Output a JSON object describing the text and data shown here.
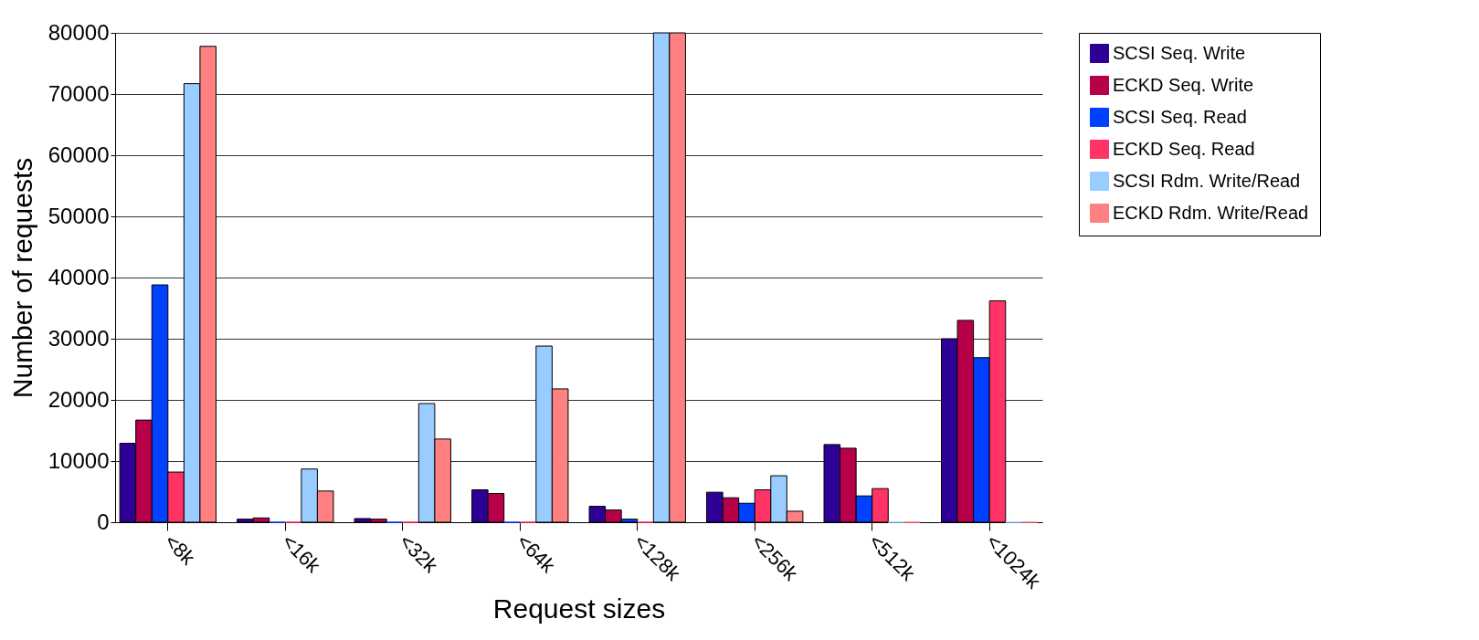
{
  "chart_data": {
    "type": "bar",
    "xlabel": "Request sizes",
    "ylabel": "Number of requests",
    "categories": [
      "<8k",
      "<16k",
      "<32k",
      "<64k",
      "<128k",
      "<256k",
      "<512k",
      "<1024k"
    ],
    "series": [
      {
        "name": "SCSI Seq. Write",
        "color": "#2e0096",
        "values": [
          12900,
          500,
          600,
          5300,
          2600,
          4900,
          12700,
          30000
        ]
      },
      {
        "name": "ECKD Seq. Write",
        "color": "#b8004a",
        "values": [
          16700,
          700,
          500,
          4700,
          2000,
          4000,
          12100,
          33000
        ]
      },
      {
        "name": "SCSI Seq. Read",
        "color": "#0040ff",
        "values": [
          38800,
          0,
          0,
          0,
          500,
          3100,
          4300,
          26900
        ]
      },
      {
        "name": "ECKD Seq. Read",
        "color": "#ff3366",
        "values": [
          8200,
          0,
          0,
          0,
          0,
          5300,
          5500,
          36200
        ]
      },
      {
        "name": "SCSI Rdm. Write/Read",
        "color": "#99ccff",
        "values": [
          71700,
          8700,
          19400,
          28800,
          80000,
          7600,
          0,
          0
        ]
      },
      {
        "name": "ECKD Rdm. Write/Read",
        "color": "#ff8080",
        "values": [
          77800,
          5100,
          13600,
          21800,
          80000,
          1800,
          0,
          0
        ]
      }
    ],
    "ylim": [
      0,
      80000
    ],
    "yticks": [
      0,
      10000,
      20000,
      30000,
      40000,
      50000,
      60000,
      70000,
      80000
    ],
    "grid": "y",
    "legend": "right"
  }
}
